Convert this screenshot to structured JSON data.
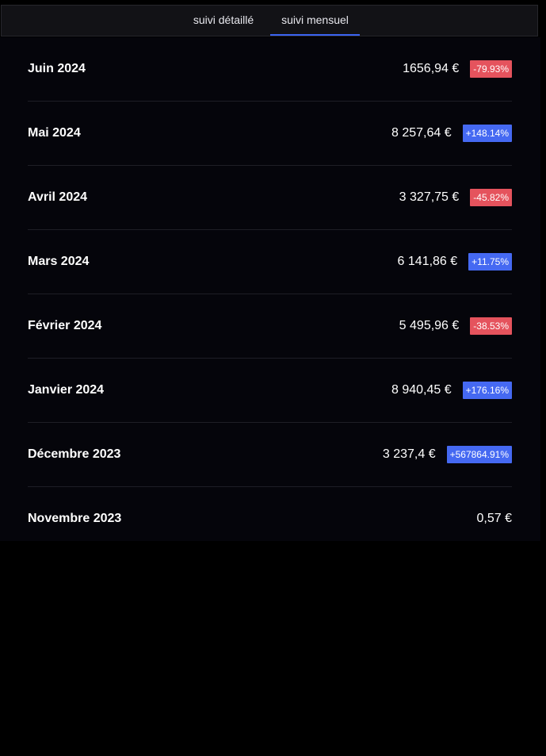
{
  "tabs": [
    {
      "label": "suivi détaillé",
      "active": false
    },
    {
      "label": "suivi mensuel",
      "active": true
    }
  ],
  "colors": {
    "accent": "#3b63f0",
    "negative": "#e5535d",
    "positive": "#4569f2",
    "background": "#000000",
    "panel": "#05050b"
  },
  "months": [
    {
      "label": "Juin 2024",
      "amount": "1656,94 €",
      "change": "-79.93%",
      "trend": "neg"
    },
    {
      "label": "Mai 2024",
      "amount": "8 257,64 €",
      "change": "+148.14%",
      "trend": "pos"
    },
    {
      "label": "Avril 2024",
      "amount": "3 327,75 €",
      "change": "-45.82%",
      "trend": "neg"
    },
    {
      "label": "Mars 2024",
      "amount": "6 141,86 €",
      "change": "+11.75%",
      "trend": "pos"
    },
    {
      "label": "Février 2024",
      "amount": "5 495,96 €",
      "change": "-38.53%",
      "trend": "neg"
    },
    {
      "label": "Janvier 2024",
      "amount": "8 940,45 €",
      "change": "+176.16%",
      "trend": "pos"
    },
    {
      "label": "Décembre 2023",
      "amount": "3 237,4 €",
      "change": "+567864.91%",
      "trend": "pos"
    },
    {
      "label": "Novembre 2023",
      "amount": "0,57 €",
      "change": "",
      "trend": "none"
    }
  ]
}
